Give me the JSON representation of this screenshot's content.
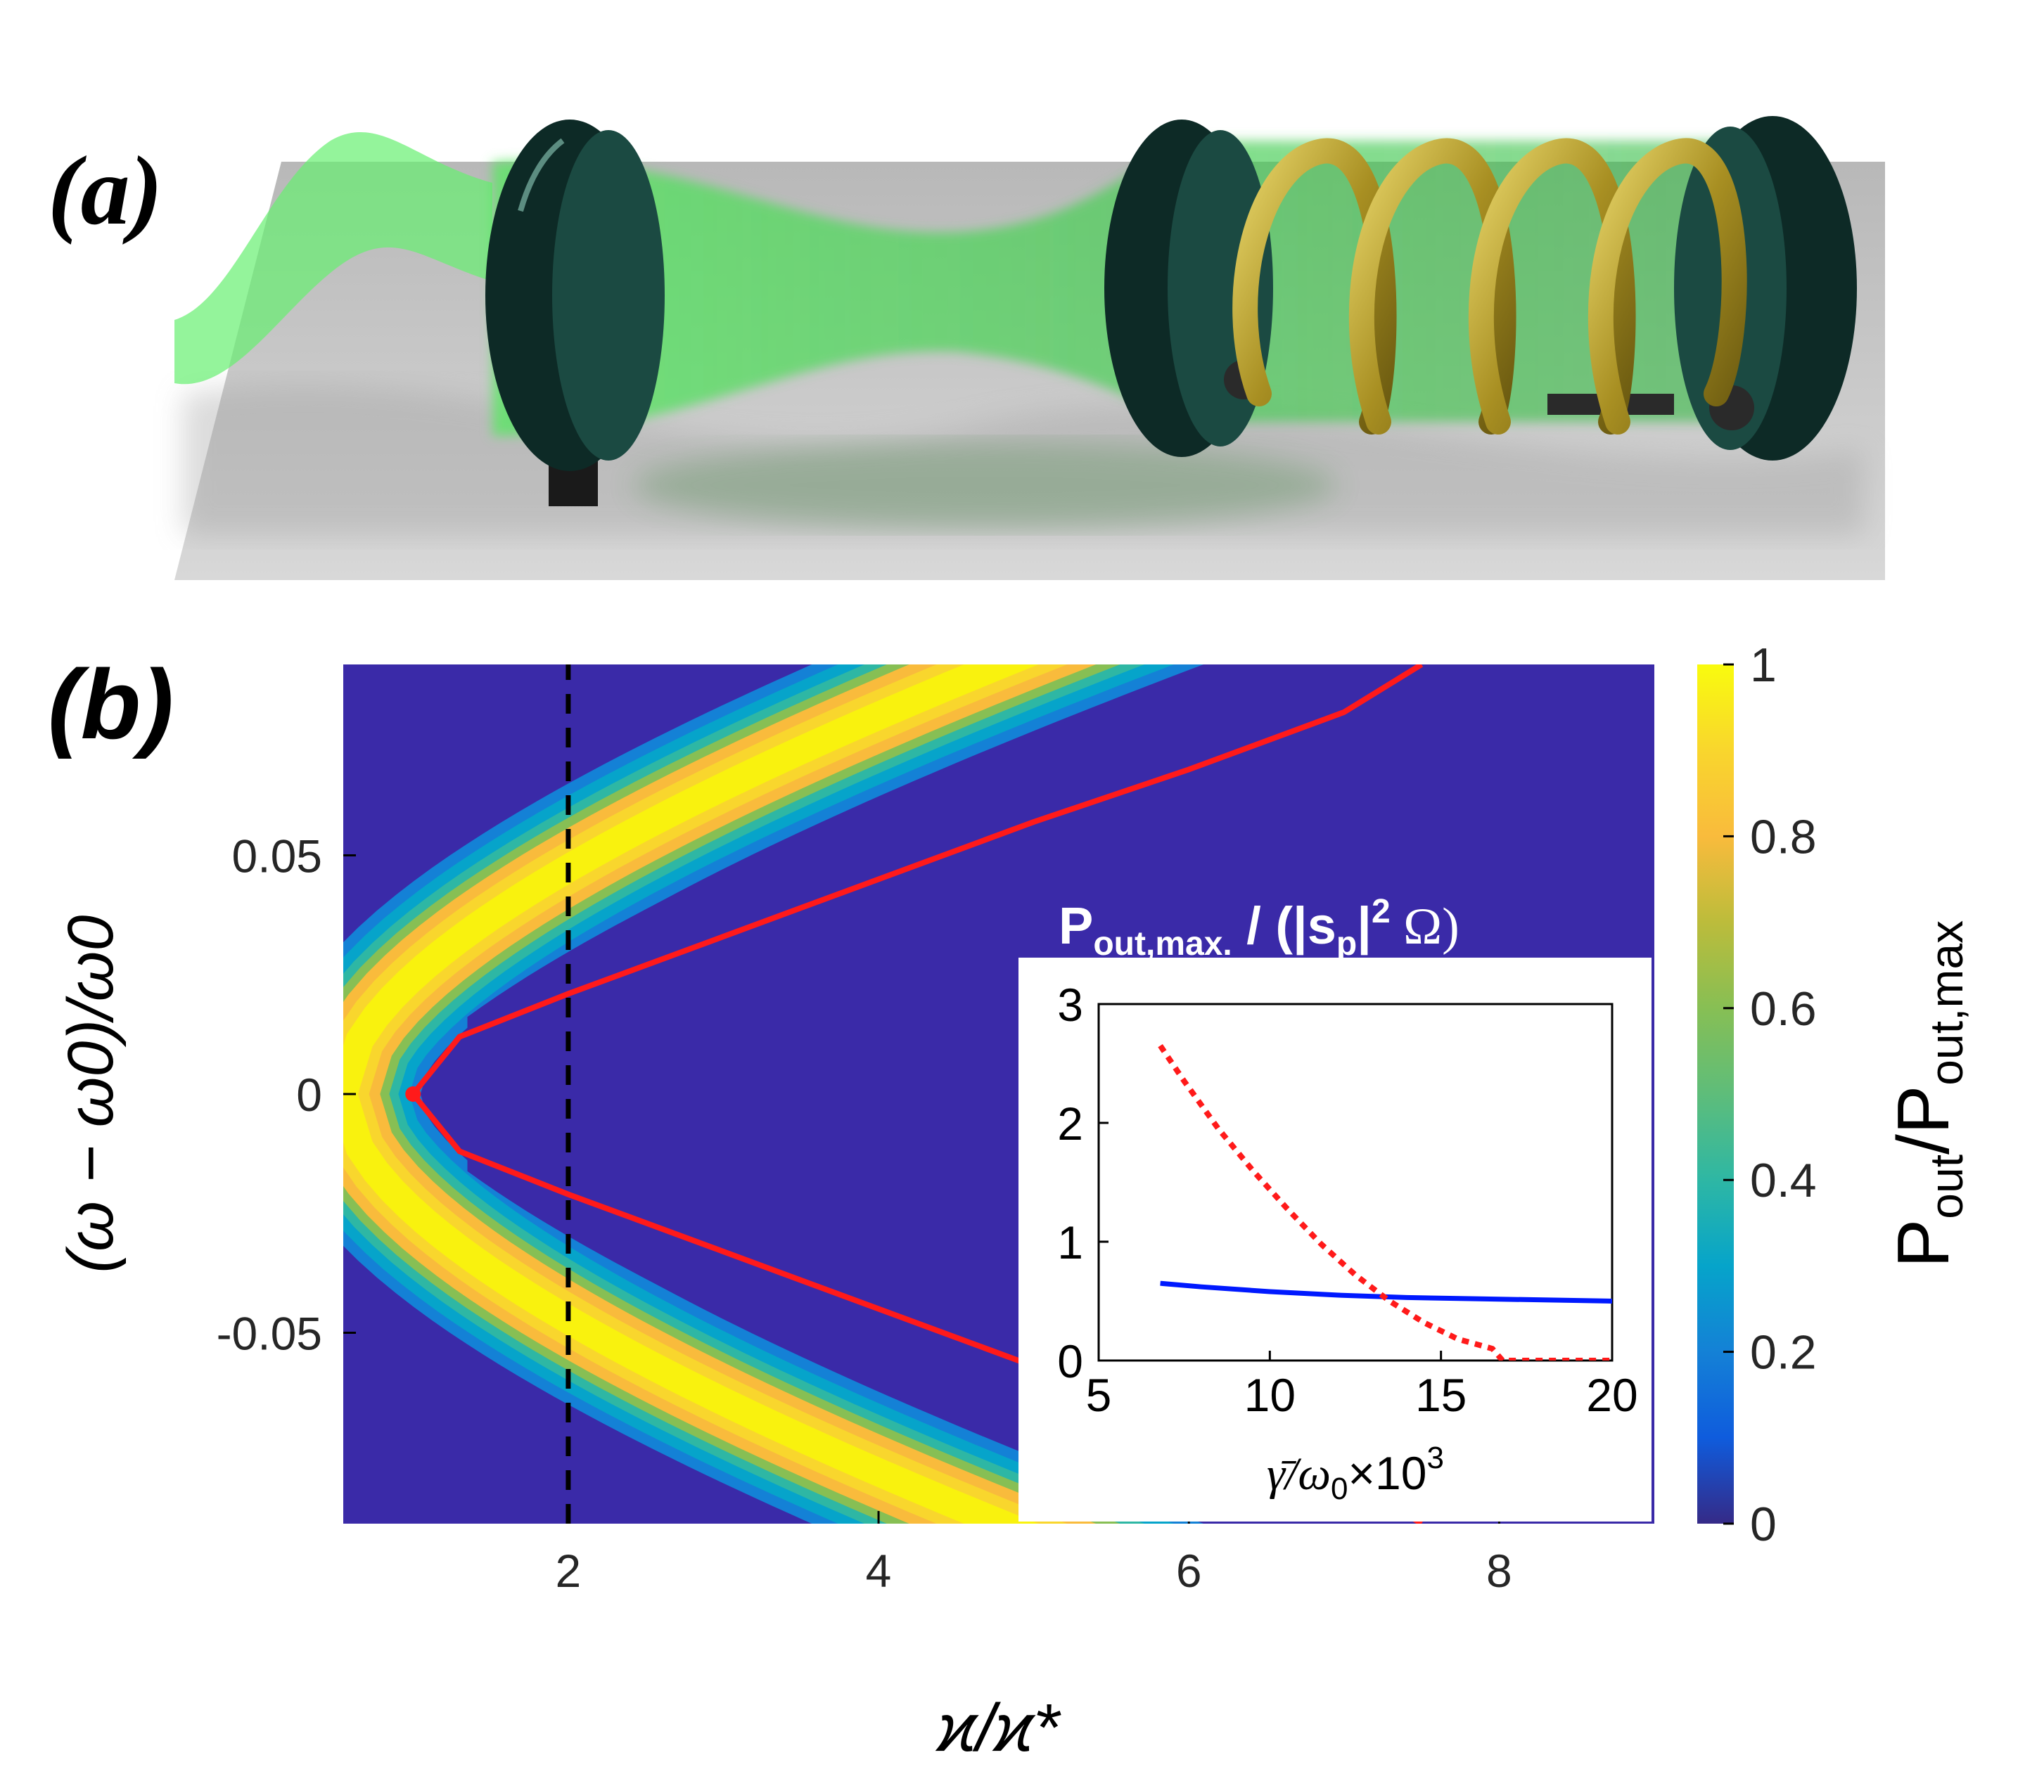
{
  "panel_a": {
    "label": "(a)"
  },
  "panel_b": {
    "label": "(b)",
    "colors": {
      "background": "#3a2aa8",
      "resonance_curve": "#ff1a1a",
      "marker_line": "#000000"
    },
    "colorbar": {
      "label": "P_out/P_out,max",
      "ticks": [
        "0",
        "0.2",
        "0.4",
        "0.6",
        "0.8",
        "1"
      ],
      "colormap": "parula"
    },
    "inset": {
      "title": "P_out,max. / (|s_p|^2 Ω)",
      "xlabel": "γ̄/ω0×10^3",
      "colors": {
        "solid": "#0019ff",
        "dotted": "#ff1a1a"
      }
    }
  },
  "chart_data": [
    {
      "type": "heatmap",
      "xlabel": "ϰ/ϰ*",
      "ylabel": "(ω − ω0)/ω0",
      "xlim": [
        0.55,
        9.0
      ],
      "ylim": [
        -0.09,
        0.09
      ],
      "xticks": [
        2,
        4,
        6,
        8
      ],
      "yticks": [
        -0.05,
        0,
        0.05
      ],
      "ytick_labels": [
        "-0.05",
        "0",
        "0.05"
      ],
      "color_range": [
        0,
        1
      ],
      "bright_band": "two branches of a hyperbola-like band meeting at ϰ/ϰ* ≈ 0.9, ω = ω0",
      "lines": [
        {
          "style": "solid",
          "description": "resonance branch, upper",
          "x": [
            1.0,
            1.3,
            2.0,
            3.0,
            4.0,
            5.0,
            6.0,
            7.0,
            7.5
          ],
          "y": [
            0.0,
            0.012,
            0.021,
            0.033,
            0.045,
            0.057,
            0.068,
            0.08,
            0.09
          ]
        },
        {
          "style": "solid",
          "description": "resonance branch, lower",
          "x": [
            1.0,
            1.3,
            2.0,
            3.0,
            4.0,
            5.0,
            6.0,
            7.0,
            7.5
          ],
          "y": [
            0.0,
            -0.012,
            -0.021,
            -0.033,
            -0.045,
            -0.057,
            -0.068,
            -0.08,
            -0.09
          ]
        },
        {
          "style": "dashed",
          "description": "vertical marker",
          "x": [
            2.0,
            2.0
          ],
          "y": [
            -0.09,
            0.09
          ]
        }
      ],
      "points": [
        {
          "x": 1.0,
          "y": 0.0
        }
      ]
    },
    {
      "type": "line",
      "xlim": [
        5,
        20
      ],
      "ylim": [
        0,
        3
      ],
      "xticks": [
        5,
        10,
        15,
        20
      ],
      "yticks": [
        0,
        1,
        2,
        3
      ],
      "series": [
        {
          "style": "solid",
          "x": [
            6.8,
            8,
            10,
            12,
            14,
            16,
            18,
            20
          ],
          "values": [
            0.65,
            0.62,
            0.58,
            0.55,
            0.53,
            0.52,
            0.51,
            0.5
          ]
        },
        {
          "style": "dotted",
          "x": [
            6.8,
            7.5,
            8.5,
            9.5,
            10.5,
            11.5,
            12.5,
            13.5,
            14.5,
            15.5,
            16.0,
            16.5,
            16.8,
            18,
            20
          ],
          "values": [
            2.65,
            2.35,
            1.95,
            1.6,
            1.28,
            0.98,
            0.72,
            0.5,
            0.32,
            0.18,
            0.14,
            0.1,
            0.0,
            0.0,
            0.0
          ]
        }
      ]
    }
  ]
}
